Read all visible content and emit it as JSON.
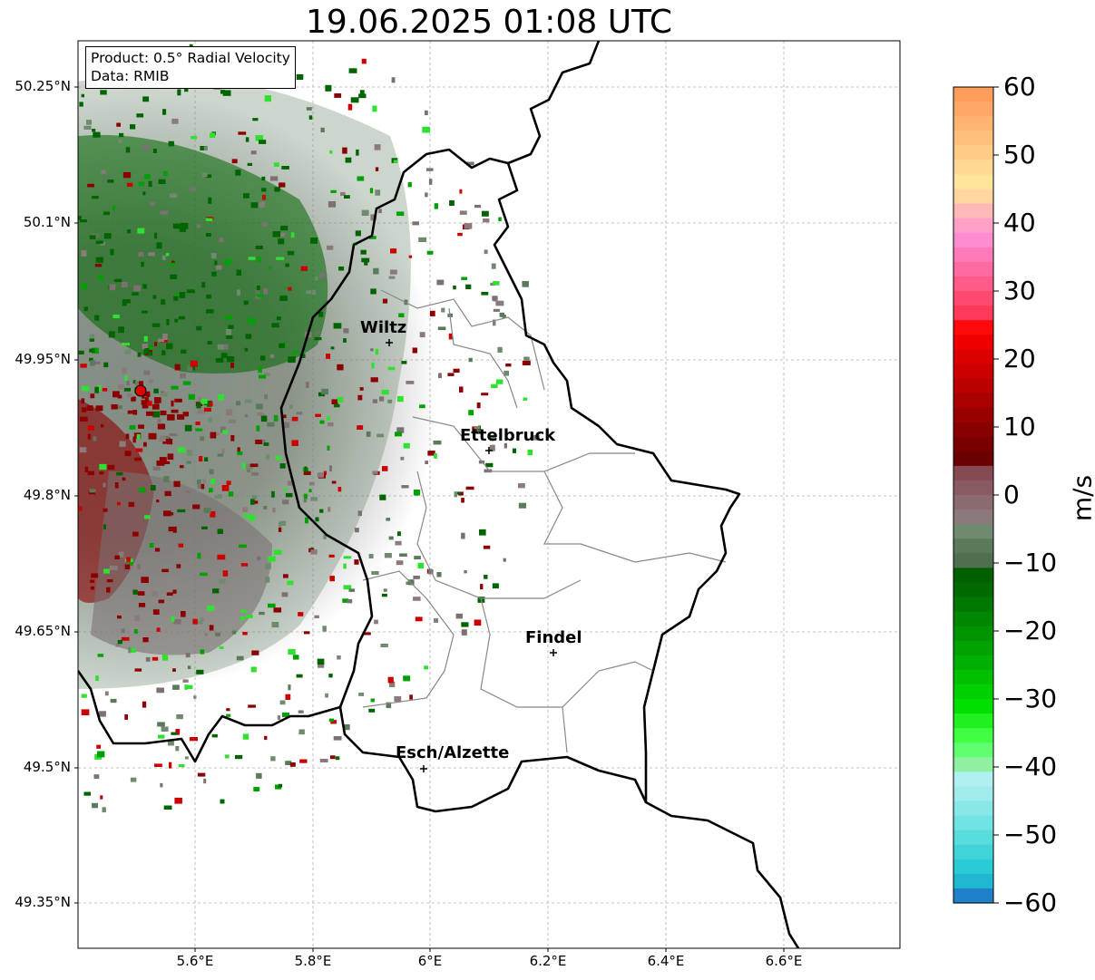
{
  "title": "19.06.2025 01:08 UTC",
  "info": {
    "product": "Product: 0.5° Radial Velocity",
    "data": "Data: RMIB"
  },
  "axes": {
    "lat_ticks": [
      "50.25°N",
      "50.1°N",
      "49.95°N",
      "49.8°N",
      "49.65°N",
      "49.5°N",
      "49.35°N"
    ],
    "lon_ticks": [
      "5.6°E",
      "5.8°E",
      "6°E",
      "6.2°E",
      "6.4°E",
      "6.6°E"
    ]
  },
  "cities": [
    {
      "name": "Wiltz"
    },
    {
      "name": "Ettelbruck"
    },
    {
      "name": "Findel"
    },
    {
      "name": "Esch/Alzette"
    }
  ],
  "colorbar": {
    "unit": "m/s",
    "ticks": [
      "60",
      "50",
      "40",
      "30",
      "20",
      "10",
      "0",
      "−10",
      "−20",
      "−30",
      "−40",
      "−50",
      "−60"
    ],
    "min": -60,
    "max": 60
  },
  "colors": {
    "radar_site": "#e00000",
    "border": "#000000",
    "canton_border": "#888888"
  }
}
